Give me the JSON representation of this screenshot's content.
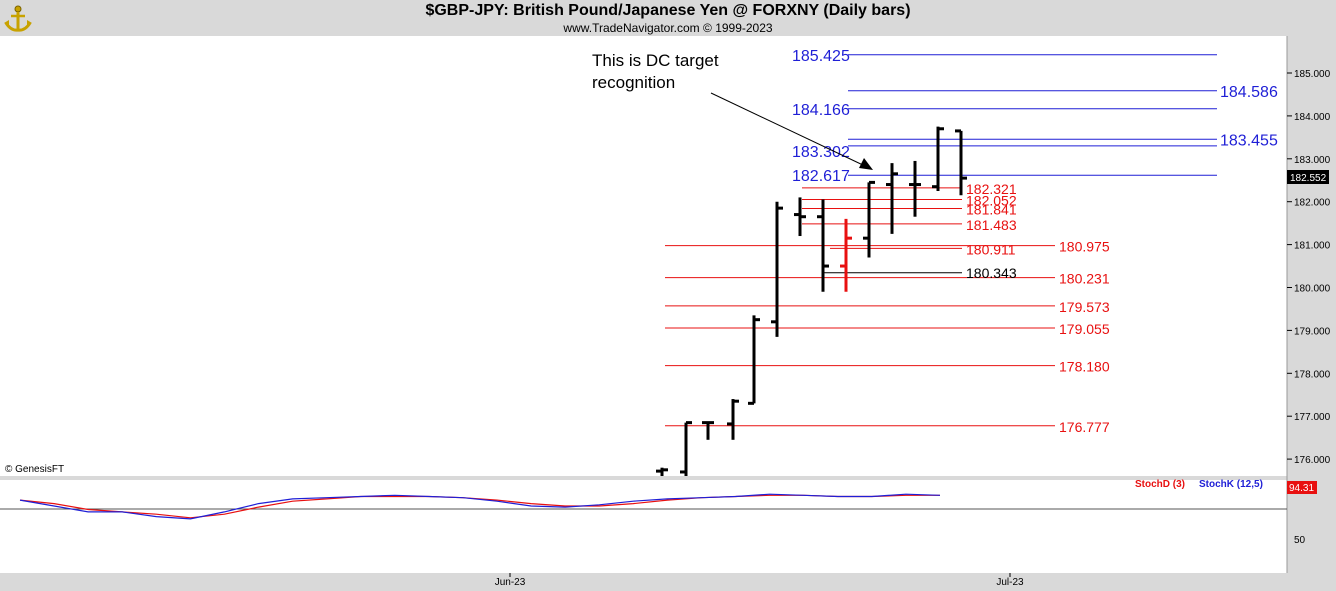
{
  "header": {
    "title": "$GBP-JPY:  British Pound/Japanese Yen @ FORXNY  (Daily bars)",
    "subtitle": "www.TradeNavigator.com © 1999-2023"
  },
  "copyright": "© GenesisFT",
  "logo_icon": "anchor-logo-icon",
  "colors": {
    "blue": "#1f1fd6",
    "red": "#e81010",
    "black": "#000000",
    "panel_bg": "#d9d9d9"
  },
  "chart_data": {
    "type": "bar",
    "ohlc_bars": [
      {
        "o": 175.72,
        "h": 175.8,
        "l": 175.6,
        "c": 175.75
      },
      {
        "o": 175.7,
        "h": 176.85,
        "l": 175.55,
        "c": 176.85
      },
      {
        "o": 176.85,
        "h": 176.85,
        "l": 176.45,
        "c": 176.85
      },
      {
        "o": 176.82,
        "h": 177.4,
        "l": 176.45,
        "c": 177.35
      },
      {
        "o": 177.3,
        "h": 179.35,
        "l": 177.3,
        "c": 179.25
      },
      {
        "o": 179.2,
        "h": 182.0,
        "l": 178.85,
        "c": 181.85
      },
      {
        "o": 181.7,
        "h": 182.1,
        "l": 181.2,
        "c": 181.65
      },
      {
        "o": 181.65,
        "h": 182.05,
        "l": 179.9,
        "c": 180.5
      },
      {
        "o": 180.5,
        "h": 181.6,
        "l": 179.9,
        "c": 181.15,
        "color": "red"
      },
      {
        "o": 181.15,
        "h": 182.45,
        "l": 180.7,
        "c": 182.45
      },
      {
        "o": 182.4,
        "h": 182.9,
        "l": 181.25,
        "c": 182.65
      },
      {
        "o": 182.4,
        "h": 182.95,
        "l": 181.65,
        "c": 182.4
      },
      {
        "o": 182.35,
        "h": 183.75,
        "l": 182.25,
        "c": 183.7
      },
      {
        "o": 183.65,
        "h": 183.65,
        "l": 182.15,
        "c": 182.55
      }
    ],
    "last_price": "182.552",
    "y_axis": {
      "ylim": [
        175.5,
        185.7
      ],
      "ticks": [
        "185.000",
        "184.000",
        "183.000",
        "182.000",
        "181.000",
        "180.000",
        "179.000",
        "178.000",
        "177.000",
        "176.000"
      ]
    },
    "blue_levels": [
      {
        "value": 185.425,
        "label": "185.425"
      },
      {
        "value": 184.586,
        "label": "184.586"
      },
      {
        "value": 184.166,
        "label": "184.166"
      },
      {
        "value": 183.455,
        "label": "183.455"
      },
      {
        "value": 183.302,
        "label": "183.302"
      },
      {
        "value": 182.617,
        "label": "182.617"
      }
    ],
    "red_levels": [
      {
        "value": 182.321,
        "label": "182.321"
      },
      {
        "value": 182.052,
        "label": "182.052"
      },
      {
        "value": 181.841,
        "label": "181.841"
      },
      {
        "value": 181.483,
        "label": "181.483"
      },
      {
        "value": 180.975,
        "label": "180.975"
      },
      {
        "value": 180.911,
        "label": "180.911"
      },
      {
        "value": 180.231,
        "label": "180.231"
      },
      {
        "value": 179.573,
        "label": "179.573"
      },
      {
        "value": 179.055,
        "label": "179.055"
      },
      {
        "value": 178.18,
        "label": "178.180"
      },
      {
        "value": 176.777,
        "label": "176.777"
      }
    ],
    "black_level": {
      "value": 180.343,
      "label": "180.343"
    },
    "annotation": [
      "This is DC target",
      "recognition"
    ],
    "stochastic": {
      "stochd_label": "StochD (3)",
      "stochk_label": "StochK (12,5)",
      "last_value": "94.31",
      "axis_tick": "50",
      "stochk": [
        83,
        78,
        73,
        73,
        69,
        67,
        73,
        80,
        84,
        85,
        86,
        87,
        86,
        85,
        82,
        78,
        77,
        79,
        82,
        84,
        85,
        86,
        88,
        87,
        86,
        86,
        88,
        87
      ],
      "stochd": [
        83,
        80,
        75,
        73,
        71,
        68,
        71,
        77,
        82,
        84,
        86,
        86,
        86,
        85,
        83,
        80,
        78,
        78,
        80,
        83,
        85,
        86,
        87,
        87,
        86,
        86,
        87,
        87
      ]
    },
    "x_axis": {
      "ticks": [
        "Jun-23",
        "Jul-23"
      ]
    }
  }
}
